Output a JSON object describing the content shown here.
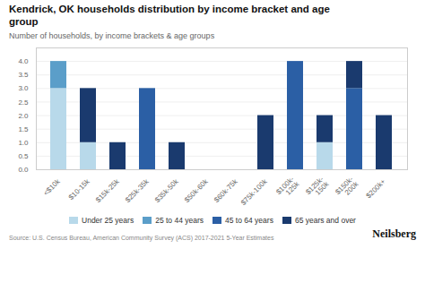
{
  "chart_data": {
    "type": "bar",
    "stacked": true,
    "title": "Kendrick, OK households distribution by income bracket and age\ngroup",
    "subtitle": "Number of households, by income brackets & age groups",
    "annotations": [
      "Source: U.S. Census Bureau, American Community Survey (ACS) 2017-2021 5-Year Estimates",
      "Neilsberg"
    ],
    "categories": [
      "<$10k",
      "$10-15k",
      "$15k-25k",
      "$25k-35k",
      "$35k-50k",
      "$50k-60k",
      "$60k-75k",
      "$75k-100k",
      "$100k-\n125k",
      "$125k-\n150k",
      "$150k-\n200k",
      "$200k+"
    ],
    "series": [
      {
        "name": "Under 25 years",
        "color": "#b8d9ea",
        "values": [
          3,
          1,
          0,
          0,
          0,
          0,
          0,
          0,
          0,
          1,
          0,
          0
        ]
      },
      {
        "name": "25 to 44 years",
        "color": "#5b9ec9",
        "values": [
          1,
          0,
          0,
          0,
          0,
          0,
          0,
          0,
          0,
          0,
          0,
          0
        ]
      },
      {
        "name": "45 to 64 years",
        "color": "#2b5fa5",
        "values": [
          0,
          0,
          0,
          3,
          0,
          0,
          0,
          0,
          4,
          0,
          3,
          0
        ]
      },
      {
        "name": "65 years and over",
        "color": "#1a3a6e",
        "values": [
          0,
          2,
          1,
          0,
          1,
          0,
          0,
          2,
          0,
          1,
          1,
          2
        ]
      }
    ],
    "ylim": [
      0,
      4.5
    ],
    "yticks": [
      {
        "value": 0,
        "label": "0.0"
      },
      0.5,
      {
        "value": 1,
        "label": "1.0"
      },
      1.5,
      {
        "value": 2,
        "label": "2.0"
      },
      2.5,
      {
        "value": 3,
        "label": "3.0"
      },
      3.5,
      {
        "value": 4,
        "label": "4.0"
      }
    ],
    "grid": true,
    "legend": "bottom"
  }
}
